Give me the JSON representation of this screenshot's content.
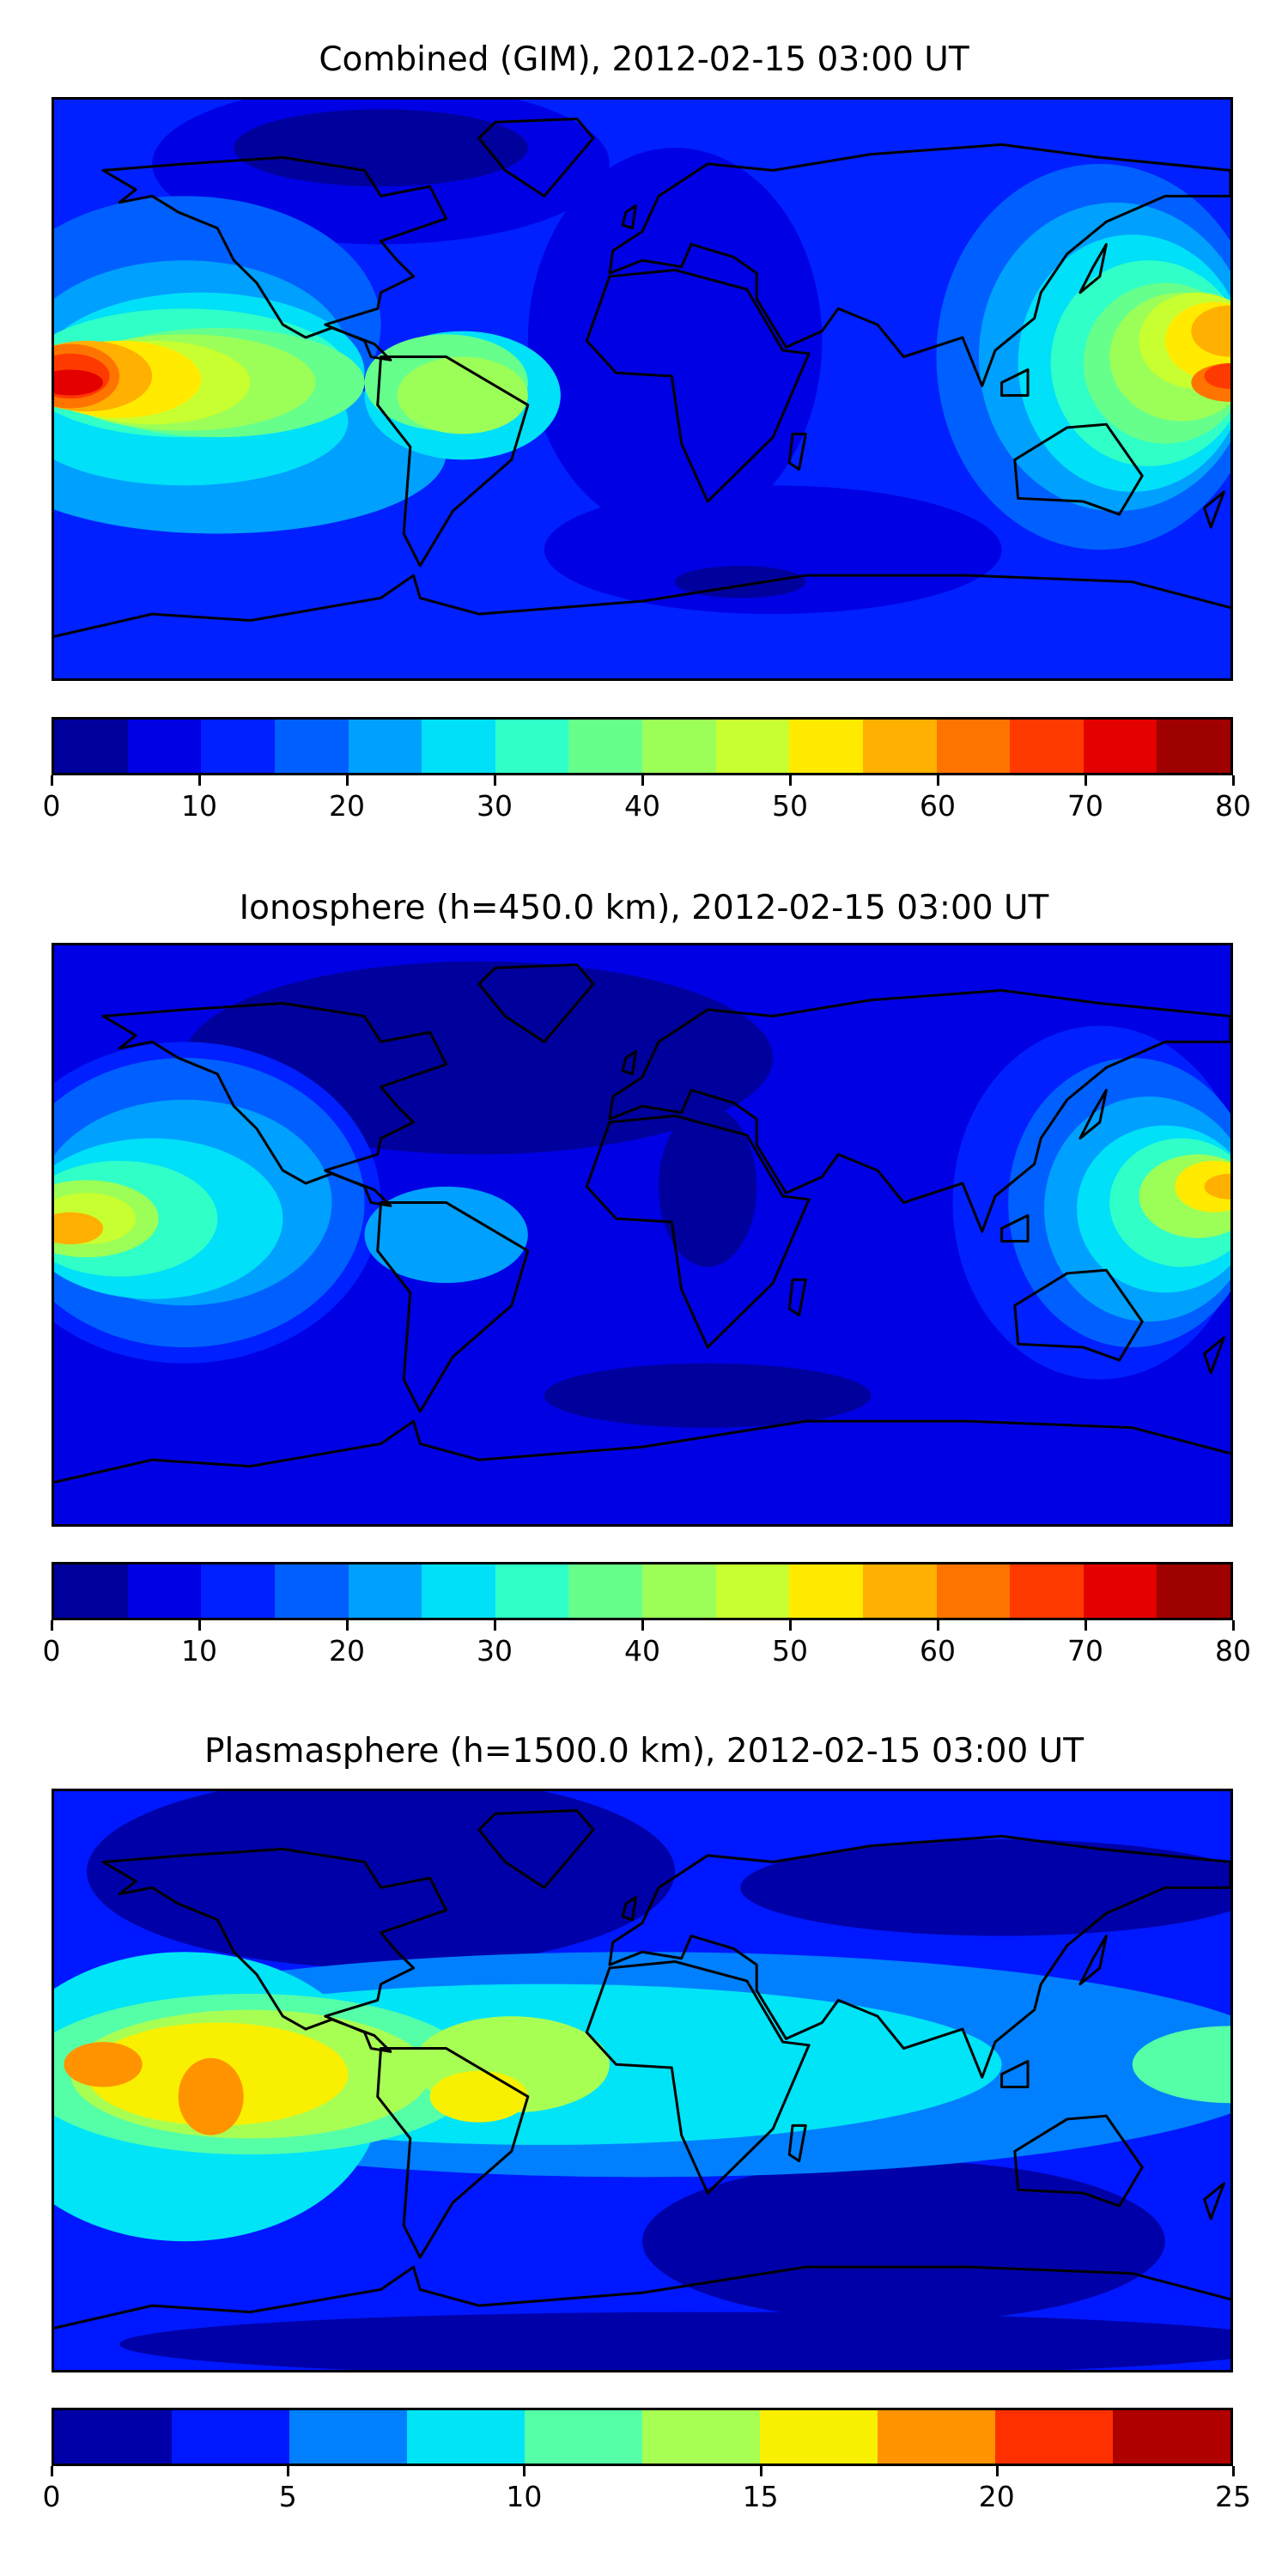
{
  "chart_data": [
    {
      "type": "heatmap",
      "title": "Combined (GIM), 2012-02-15 03:00 UT",
      "colorbar": {
        "ticks": [
          "0",
          "10",
          "20",
          "30",
          "40",
          "50",
          "60",
          "70",
          "80"
        ],
        "range": [
          0,
          80
        ],
        "levels": [
          0,
          5,
          10,
          15,
          20,
          25,
          30,
          35,
          40,
          45,
          50,
          55,
          60,
          65,
          70,
          75,
          80
        ],
        "colors": [
          "#00009c",
          "#0000e4",
          "#0020ff",
          "#0060ff",
          "#00a0ff",
          "#00e0f8",
          "#30ffc8",
          "#66ff8c",
          "#9cff58",
          "#c8ff30",
          "#ffea00",
          "#ffb000",
          "#ff7400",
          "#ff3a00",
          "#e50000",
          "#9f0000"
        ]
      }
    },
    {
      "type": "heatmap",
      "title": "Ionosphere  (h=450.0 km), 2012-02-15 03:00 UT",
      "colorbar": {
        "ticks": [
          "0",
          "10",
          "20",
          "30",
          "40",
          "50",
          "60",
          "70",
          "80"
        ],
        "range": [
          0,
          80
        ],
        "levels": [
          0,
          5,
          10,
          15,
          20,
          25,
          30,
          35,
          40,
          45,
          50,
          55,
          60,
          65,
          70,
          75,
          80
        ],
        "colors": [
          "#00009c",
          "#0000e4",
          "#0020ff",
          "#0060ff",
          "#00a0ff",
          "#00e0f8",
          "#30ffc8",
          "#66ff8c",
          "#9cff58",
          "#c8ff30",
          "#ffea00",
          "#ffb000",
          "#ff7400",
          "#ff3a00",
          "#e50000",
          "#9f0000"
        ]
      }
    },
    {
      "type": "heatmap",
      "title": "Plasmasphere (h=1500.0 km), 2012-02-15 03:00 UT",
      "colorbar": {
        "ticks": [
          "0",
          "5",
          "10",
          "15",
          "20",
          "25"
        ],
        "range": [
          0,
          25
        ],
        "levels": [
          0,
          2.5,
          5,
          7.5,
          10,
          12.5,
          15,
          17.5,
          20,
          22.5,
          25
        ],
        "colors": [
          "#0000a8",
          "#0018ff",
          "#0080ff",
          "#00e4f8",
          "#54ffa8",
          "#a8ff54",
          "#f8f000",
          "#ff9400",
          "#ff3000",
          "#b00000"
        ]
      }
    }
  ]
}
